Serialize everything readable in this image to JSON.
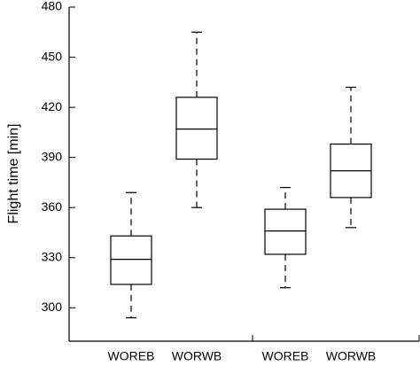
{
  "chart_data": {
    "type": "box",
    "ylabel": "Flight time [min]",
    "categories": [
      "WOREB",
      "WORWB",
      "WOREB",
      "WORWB"
    ],
    "boxes": [
      {
        "min": 294,
        "q1": 314,
        "median": 329,
        "q3": 343,
        "max": 369
      },
      {
        "min": 360,
        "q1": 389,
        "median": 407,
        "q3": 426,
        "max": 465
      },
      {
        "min": 312,
        "q1": 332,
        "median": 346,
        "q3": 359,
        "max": 372
      },
      {
        "min": 348,
        "q1": 366,
        "median": 382,
        "q3": 398,
        "max": 432
      }
    ],
    "color": "#000000",
    "ylim": [
      280,
      480
    ],
    "yticks": [
      300,
      330,
      360,
      390,
      420,
      450,
      480
    ]
  }
}
